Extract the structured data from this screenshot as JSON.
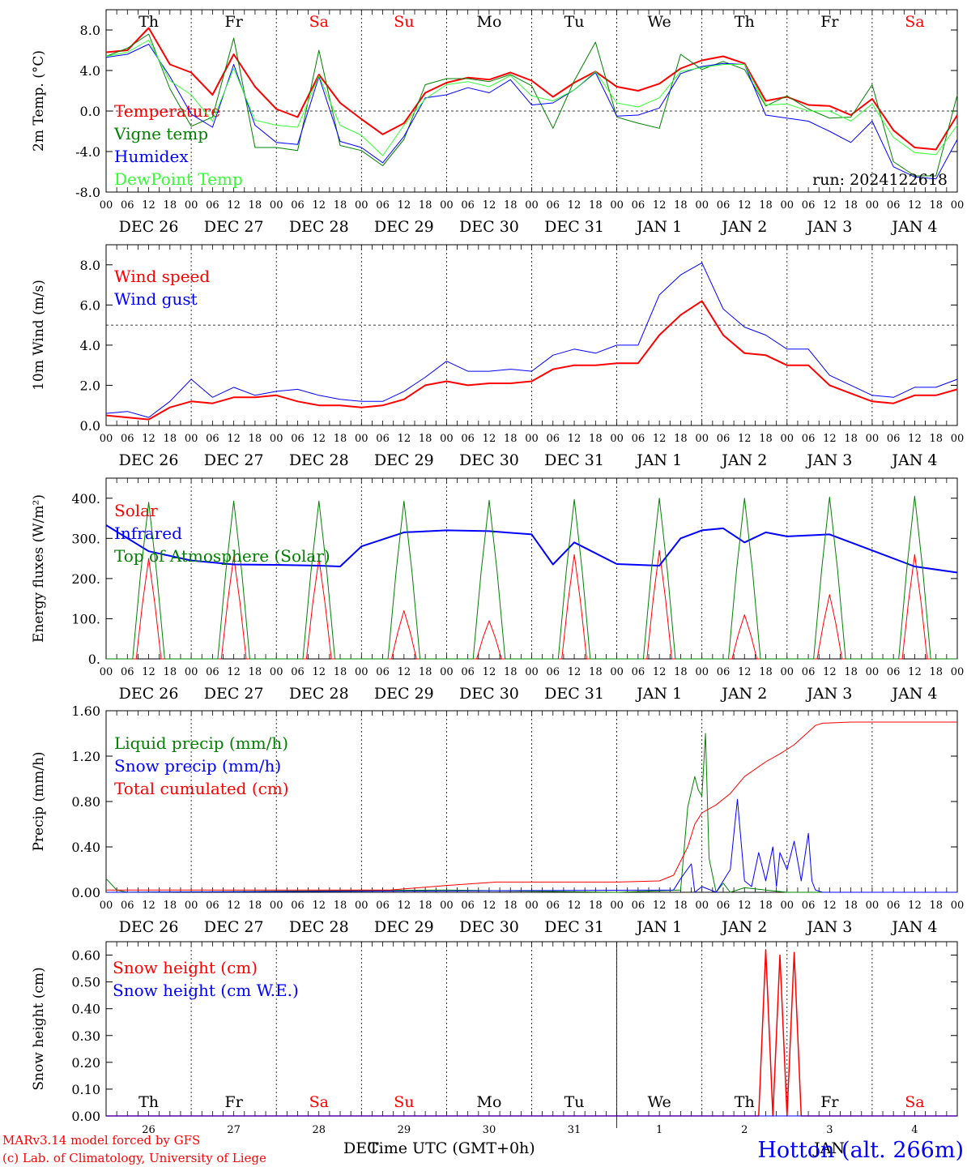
{
  "chart_data": [
    {
      "type": "line",
      "panel": "temperature",
      "ylabel": "2m Temp. (°C)",
      "ylim": [
        -8,
        10
      ],
      "yticks": [
        "8.0",
        "4.0",
        "0.0",
        "-4.0",
        "-8.0"
      ],
      "y_grid_line": 0,
      "run_label": "run: 2024122618",
      "day_names": [
        "Th",
        "Fr",
        "Sa",
        "Su",
        "Mo",
        "Tu",
        "We",
        "Th",
        "Fr",
        "Sa"
      ],
      "day_name_colors": [
        "#000000",
        "#000000",
        "#ff0000",
        "#ff0000",
        "#000000",
        "#000000",
        "#000000",
        "#000000",
        "#000000",
        "#ff0000"
      ],
      "x_hours": [
        0,
        6,
        12,
        18,
        24,
        30,
        36,
        42,
        48,
        54,
        60,
        66,
        72,
        78,
        84,
        90,
        96,
        102,
        108,
        114,
        120,
        126,
        132,
        138,
        144,
        150,
        156,
        162,
        168,
        174,
        180,
        186,
        192,
        198,
        204,
        210,
        216,
        222,
        228,
        234,
        240
      ],
      "series": [
        {
          "name": "Temperature",
          "color": "#ff0000",
          "width": 2,
          "values": [
            5.8,
            6.0,
            8.2,
            4.6,
            3.8,
            1.6,
            5.6,
            2.4,
            0.2,
            -0.6,
            3.6,
            0.8,
            -0.8,
            -2.3,
            -1.2,
            1.8,
            2.8,
            3.3,
            3.1,
            3.8,
            3.0,
            1.4,
            2.8,
            3.9,
            2.4,
            2.0,
            2.7,
            4.2,
            5.0,
            5.4,
            4.7,
            1.0,
            1.4,
            0.6,
            0.5,
            -0.4,
            1.2,
            -1.9,
            -3.6,
            -3.8,
            -0.4
          ]
        },
        {
          "name": "Vigne temp",
          "color": "#008000",
          "width": 1,
          "values": [
            5.4,
            6.2,
            7.6,
            2.2,
            -1.5,
            -0.6,
            7.2,
            -3.6,
            -3.6,
            -3.9,
            6.0,
            -3.4,
            -3.9,
            -5.4,
            -2.8,
            2.6,
            3.2,
            3.2,
            2.9,
            3.6,
            2.5,
            -1.7,
            3.0,
            6.8,
            -0.6,
            -1.2,
            -1.7,
            5.6,
            4.1,
            4.9,
            4.1,
            0.5,
            1.5,
            0.2,
            -0.7,
            -0.6,
            2.6,
            -5.0,
            -6.4,
            -6.4,
            1.6
          ]
        },
        {
          "name": "Humidex",
          "color": "#0000ff",
          "width": 1,
          "values": [
            5.3,
            5.6,
            6.6,
            3.4,
            -0.3,
            -1.6,
            4.6,
            -1.4,
            -3.1,
            -3.3,
            3.4,
            -3.0,
            -3.6,
            -5.1,
            -2.5,
            1.3,
            1.6,
            2.3,
            1.8,
            3.1,
            0.6,
            0.8,
            2.1,
            3.8,
            -0.5,
            -0.4,
            0.3,
            3.7,
            4.4,
            4.7,
            4.6,
            -0.4,
            -0.7,
            -1.0,
            -2.0,
            -3.1,
            -1.0,
            -5.5,
            -6.5,
            -6.7,
            -2.8
          ]
        },
        {
          "name": "DewPoint Temp",
          "color": "#33ff33",
          "width": 1,
          "values": [
            5.4,
            5.8,
            7.0,
            3.0,
            1.6,
            -1.0,
            4.2,
            -0.9,
            -1.4,
            -1.6,
            3.5,
            -1.4,
            -2.4,
            -4.4,
            -1.4,
            1.2,
            2.6,
            2.9,
            2.4,
            3.5,
            1.5,
            1.0,
            2.1,
            3.9,
            0.8,
            0.4,
            1.3,
            3.9,
            4.3,
            4.6,
            4.6,
            0.6,
            0.7,
            0.0,
            0.0,
            -1.0,
            0.7,
            -2.6,
            -4.1,
            -4.3,
            -1.4
          ]
        }
      ]
    },
    {
      "type": "line",
      "panel": "wind",
      "ylabel": "10m Wind (m/s)",
      "ylim": [
        0,
        9
      ],
      "yticks": [
        "8.0",
        "6.0",
        "4.0",
        "2.0",
        "0.0"
      ],
      "y_grid_line": 5,
      "x_hours": [
        0,
        6,
        12,
        18,
        24,
        30,
        36,
        42,
        48,
        54,
        60,
        66,
        72,
        78,
        84,
        90,
        96,
        102,
        108,
        114,
        120,
        126,
        132,
        138,
        144,
        150,
        156,
        162,
        168,
        174,
        180,
        186,
        192,
        198,
        204,
        210,
        216,
        222,
        228,
        234,
        240
      ],
      "series": [
        {
          "name": "Wind speed",
          "color": "#ff0000",
          "width": 2,
          "values": [
            0.5,
            0.4,
            0.3,
            0.9,
            1.2,
            1.1,
            1.4,
            1.4,
            1.5,
            1.2,
            1.0,
            1.0,
            0.9,
            1.0,
            1.3,
            2.0,
            2.2,
            2.0,
            2.1,
            2.1,
            2.2,
            2.8,
            3.0,
            3.0,
            3.1,
            3.1,
            4.5,
            5.5,
            6.2,
            4.5,
            3.6,
            3.5,
            3.0,
            3.0,
            2.0,
            1.6,
            1.2,
            1.1,
            1.5,
            1.5,
            1.8
          ]
        },
        {
          "name": "Wind gust",
          "color": "#0000ff",
          "width": 1,
          "values": [
            0.6,
            0.7,
            0.4,
            1.2,
            2.3,
            1.4,
            1.9,
            1.5,
            1.7,
            1.8,
            1.5,
            1.3,
            1.2,
            1.2,
            1.7,
            2.4,
            3.2,
            2.7,
            2.7,
            2.8,
            2.7,
            3.5,
            3.8,
            3.6,
            4.0,
            4.0,
            6.5,
            7.5,
            8.1,
            5.8,
            4.9,
            4.5,
            3.8,
            3.8,
            2.5,
            2.0,
            1.5,
            1.4,
            1.9,
            1.9,
            2.3
          ]
        }
      ]
    },
    {
      "type": "line",
      "panel": "energy",
      "ylabel": "Energy fluxes (W/m²)",
      "ylim": [
        0,
        450
      ],
      "yticks": [
        "400.",
        "300.",
        "200.",
        "100.",
        "0."
      ],
      "series": [
        {
          "name": "Solar",
          "color": "#ff0000",
          "width": 1,
          "day_peaks": [
            250,
            255,
            250,
            120,
            95,
            260,
            270,
            110,
            160,
            260
          ]
        },
        {
          "name": "Infrared",
          "color": "#0000ff",
          "width": 2,
          "x_hours": [
            0,
            12,
            24,
            36,
            48,
            60,
            66,
            72,
            84,
            96,
            108,
            120,
            126,
            132,
            144,
            156,
            162,
            168,
            174,
            180,
            186,
            192,
            204,
            216,
            228,
            240
          ],
          "values": [
            333,
            268,
            245,
            235,
            234,
            232,
            230,
            280,
            315,
            320,
            318,
            310,
            235,
            290,
            236,
            232,
            300,
            320,
            325,
            290,
            315,
            305,
            310,
            270,
            230,
            215
          ]
        },
        {
          "name": "Top of Atmosphere (Solar)",
          "color": "#008000",
          "width": 1,
          "day_peaks": [
            390,
            393,
            393,
            393,
            395,
            397,
            400,
            400,
            403,
            405
          ]
        }
      ]
    },
    {
      "type": "line",
      "panel": "precip",
      "ylabel": "Precip (mm/h)",
      "ylim": [
        0,
        1.6
      ],
      "yticks": [
        "1.60",
        "1.20",
        "0.80",
        "0.40",
        "0.00"
      ],
      "series": [
        {
          "name": "Liquid precip (mm/h)",
          "color": "#008000",
          "width": 1,
          "x_hours": [
            0,
            3,
            6,
            96,
            144,
            162,
            164,
            166,
            167,
            168,
            169,
            170,
            172,
            174,
            176,
            180,
            186,
            192,
            240
          ],
          "values": [
            0.12,
            0.02,
            0.0,
            0.02,
            0.0,
            0.02,
            0.75,
            1.02,
            0.9,
            0.85,
            1.4,
            0.3,
            0.0,
            0.08,
            0.0,
            0.04,
            0.02,
            0.0,
            0.0
          ]
        },
        {
          "name": "Snow precip (mm/h)",
          "color": "#0000ff",
          "width": 1,
          "x_hours": [
            0,
            160,
            162,
            165,
            166,
            168,
            172,
            176,
            178,
            180,
            182,
            184,
            186,
            188,
            189,
            190,
            192,
            194,
            196,
            198,
            199,
            200,
            202,
            204,
            240
          ],
          "values": [
            0.0,
            0.02,
            0.12,
            0.25,
            0.0,
            0.05,
            0.0,
            0.2,
            0.82,
            0.1,
            0.05,
            0.35,
            0.1,
            0.4,
            0.05,
            0.35,
            0.2,
            0.45,
            0.1,
            0.52,
            0.1,
            0.02,
            0.0,
            0.0,
            0.0
          ]
        },
        {
          "name": "Total cumulated (cm)",
          "color": "#ff0000",
          "width": 1,
          "x_hours": [
            0,
            80,
            96,
            110,
            144,
            156,
            160,
            164,
            166,
            168,
            172,
            176,
            180,
            186,
            190,
            194,
            200,
            202,
            210,
            240
          ],
          "values": [
            0.02,
            0.02,
            0.06,
            0.09,
            0.09,
            0.1,
            0.15,
            0.4,
            0.6,
            0.7,
            0.77,
            0.87,
            1.02,
            1.15,
            1.22,
            1.3,
            1.47,
            1.49,
            1.5,
            1.5
          ]
        }
      ]
    },
    {
      "type": "line",
      "panel": "snow",
      "ylabel": "Snow height (cm)",
      "ylim": [
        0,
        0.65
      ],
      "yticks": [
        "0.60",
        "0.50",
        "0.40",
        "0.30",
        "0.20",
        "0.10",
        "0.00"
      ],
      "series": [
        {
          "name": "Snow height (cm)",
          "color": "#ff0000",
          "width": 1.5,
          "x_hours": [
            0,
            184,
            186,
            188,
            190,
            192,
            194,
            196,
            240
          ],
          "values": [
            0,
            0,
            0.62,
            0,
            0.6,
            0,
            0.61,
            0,
            0
          ]
        },
        {
          "name": "Snow height (cm W.E.)",
          "color": "#0000ff",
          "width": 1,
          "x_hours": [
            0,
            240
          ],
          "values": [
            0,
            0
          ]
        }
      ],
      "day_names": [
        "Th",
        "Fr",
        "Sa",
        "Su",
        "Mo",
        "Tu",
        "We",
        "Th",
        "Fr",
        "Sa"
      ],
      "day_numbers": [
        "26",
        "27",
        "28",
        "29",
        "30",
        "31",
        "1",
        "2",
        "3",
        "4"
      ],
      "month_left": "DEC",
      "month_right": "JAN",
      "xlabel": "Time UTC (GMT+0h)"
    }
  ],
  "x_axis": {
    "hour_labels": [
      "00",
      "06",
      "12",
      "18"
    ],
    "final_label": "00",
    "date_labels": [
      "DEC 26",
      "DEC 27",
      "DEC 28",
      "DEC 29",
      "DEC 30",
      "DEC 31",
      "JAN  1",
      "JAN  2",
      "JAN  3",
      "JAN  4"
    ]
  },
  "footer": {
    "credit_line1": "MARv3.14 model forced by GFS",
    "credit_line2": "(c) Lab. of Climatology, University of Liege",
    "station": "Hotton (alt. 266m)"
  },
  "colors": {
    "red": "#ff0000",
    "green": "#008000",
    "blue": "#0000ff",
    "light_green": "#33ff33"
  }
}
